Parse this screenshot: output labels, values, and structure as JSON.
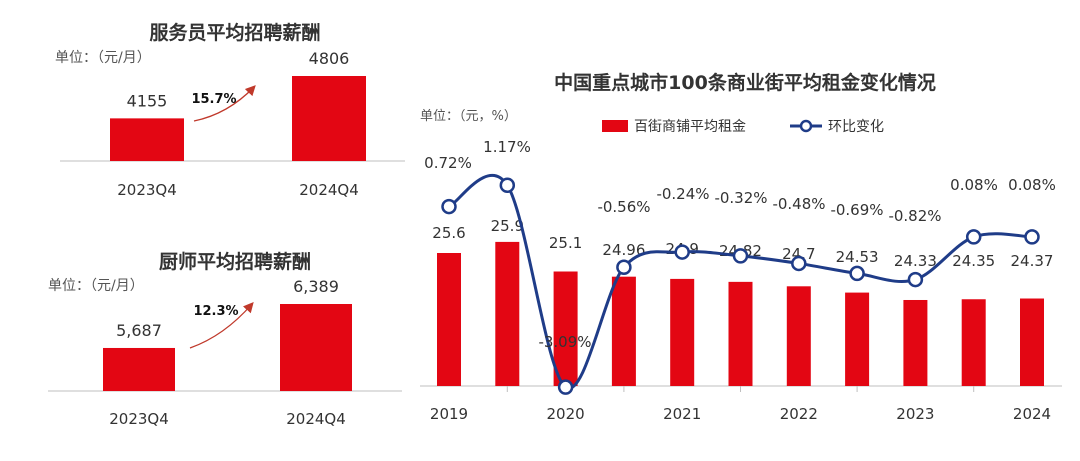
{
  "colors": {
    "bar": "#e30613",
    "line": "#1f3c88",
    "arrow": "#c0392b",
    "axis": "#bfbfbf"
  },
  "chart_data": [
    {
      "type": "bar",
      "title": "服务员平均招聘薪酬",
      "unit_label": "单位：（元/月）",
      "categories": [
        "2023Q4",
        "2024Q4"
      ],
      "values": [
        4155,
        4806
      ],
      "value_labels": [
        "4155",
        "4806"
      ],
      "growth_label": "15.7%",
      "ylim": [
        3500,
        4806
      ]
    },
    {
      "type": "bar",
      "title": "厨师平均招聘薪酬",
      "unit_label": "单位：（元/月）",
      "categories": [
        "2023Q4",
        "2024Q4"
      ],
      "values": [
        5687,
        6389
      ],
      "value_labels": [
        "5,687",
        "6,389"
      ],
      "growth_label": "12.3%",
      "ylim": [
        5000,
        6389
      ]
    },
    {
      "type": "bar+line",
      "title": "中国重点城市100条商业街平均租金变化情况",
      "unit_label": "单位：（元，%）",
      "legend": {
        "bar": "百街商铺平均租金",
        "line": "环比变化",
        "position": "top"
      },
      "year_ticks": [
        "2019",
        "2020",
        "2021",
        "2022",
        "2023",
        "2024"
      ],
      "series": [
        {
          "name": "百街商铺平均租金",
          "type": "bar",
          "values": [
            25.6,
            25.9,
            25.1,
            24.96,
            24.9,
            24.82,
            24.7,
            24.53,
            24.33,
            24.35,
            24.37
          ],
          "labels": [
            "25.6",
            "25.9",
            "25.1",
            "24.96",
            "24.9",
            "24.82",
            "24.7",
            "24.53",
            "24.33",
            "24.35",
            "24.37"
          ]
        },
        {
          "name": "环比变化",
          "type": "line",
          "values": [
            0.72,
            1.17,
            -3.09,
            -0.56,
            -0.24,
            -0.32,
            -0.48,
            -0.69,
            -0.82,
            0.08,
            0.08
          ],
          "labels": [
            "0.72%",
            "1.17%",
            "-3.09%",
            "-0.56%",
            "-0.24%",
            "-0.32%",
            "-0.48%",
            "-0.69%",
            "-0.82%",
            "0.08%",
            "0.08%"
          ]
        }
      ]
    }
  ]
}
